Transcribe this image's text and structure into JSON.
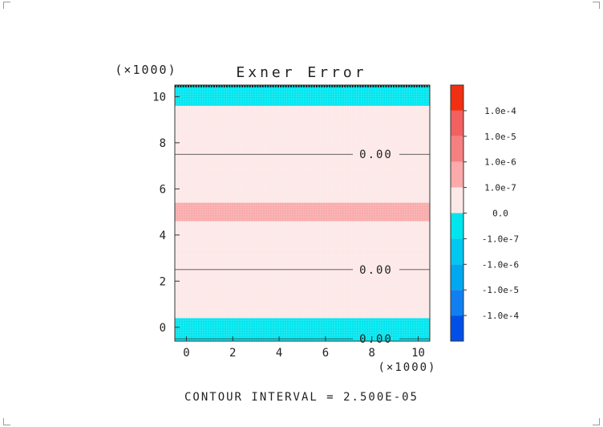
{
  "chart_data": {
    "type": "heatmap",
    "title": "Exner Error",
    "x_multiplier": "(×1000)",
    "y_multiplier": "(×1000)",
    "xlim": [
      -0.5,
      10.5
    ],
    "ylim": [
      -0.6,
      10.5
    ],
    "x_ticks": [
      0,
      2,
      4,
      6,
      8,
      10
    ],
    "y_ticks": [
      0,
      2,
      4,
      6,
      8,
      10
    ],
    "filled_bands": [
      {
        "y_from": -0.6,
        "y_to": 0.4,
        "level": "-1.0e-7",
        "color": "#00e5ee"
      },
      {
        "y_from": 0.4,
        "y_to": 4.6,
        "level": "0.0",
        "color": "#fde8e8"
      },
      {
        "y_from": 4.6,
        "y_to": 5.4,
        "level": "1.0e-7",
        "color": "#faaaaa"
      },
      {
        "y_from": 5.4,
        "y_to": 9.6,
        "level": "0.0",
        "color": "#fde8e8"
      },
      {
        "y_from": 9.6,
        "y_to": 10.5,
        "level": "-1.0e-7",
        "color": "#00e5ee"
      }
    ],
    "contour_lines": [
      {
        "y": 7.5,
        "label": "0.00"
      },
      {
        "y": 2.5,
        "label": "0.00"
      },
      {
        "y": -0.5,
        "label": "0.00"
      }
    ],
    "colorbar": {
      "labels": [
        "1.0e-4",
        "1.0e-5",
        "1.0e-6",
        "1.0e-7",
        "0.0",
        "-1.0e-7",
        "-1.0e-6",
        "-1.0e-5",
        "-1.0e-4"
      ],
      "colors": [
        "#f03010",
        "#f26060",
        "#f68080",
        "#faaaaa",
        "#fde8e8",
        "#00e5ee",
        "#00c8f0",
        "#00a8f0",
        "#1080f0",
        "#0050e8"
      ]
    },
    "grid": false
  },
  "footer": {
    "contour_interval": "CONTOUR INTERVAL = 2.500E-05"
  }
}
